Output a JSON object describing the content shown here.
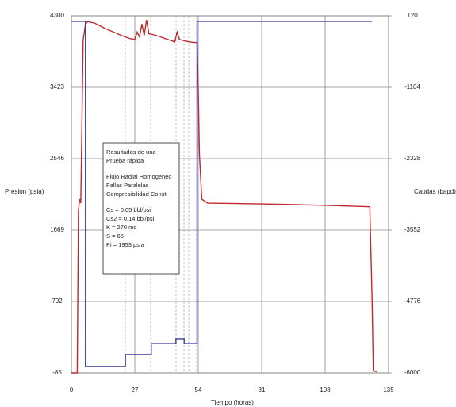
{
  "chart_data": {
    "type": "line",
    "xlabel": "Tiempo (horas)",
    "ylabel": "Presion (psia)",
    "y2label": "Caudas (bapd)",
    "xlim": [
      0,
      135
    ],
    "xticks": [
      0,
      27,
      54,
      81,
      108,
      135
    ],
    "ylim": [
      -85,
      4300
    ],
    "yticks": [
      -85,
      792,
      1669,
      2546,
      3423,
      4300
    ],
    "y2lim": [
      -6000,
      120
    ],
    "y2ticks": [
      -6000,
      -4776,
      -3552,
      -2328,
      -1104,
      120
    ],
    "grid": true,
    "annotation": [
      "Resultados de una",
      "Prueba rápida",
      "Flujo Radial Homogeneo",
      "Fallas Paralelas",
      "Compresibilidad Const.",
      "Cs  = 0.05 bbl/psi",
      "Cs2 = 0.14 bbl/psi",
      "K   = 270  md",
      "S   = 65",
      "Pi  = 1953 psia"
    ],
    "series": [
      {
        "name": "Presion",
        "color": "#c0282d",
        "x": [
          0,
          1.5,
          2.5,
          3,
          3.5,
          4,
          5,
          6,
          7,
          10,
          14,
          18,
          22,
          25,
          27,
          28,
          29,
          30,
          31,
          32,
          33,
          36,
          40,
          44,
          45,
          46,
          50,
          53.5,
          54,
          54.5,
          55.5,
          58,
          70,
          90,
          110,
          127,
          128,
          128.5,
          130
        ],
        "values": [
          -85,
          -85,
          -85,
          1900,
          2050,
          2000,
          4000,
          4200,
          4230,
          4210,
          4150,
          4100,
          4050,
          4020,
          4010,
          4100,
          4040,
          4200,
          4060,
          4250,
          4080,
          4060,
          4020,
          3980,
          4100,
          4010,
          3980,
          3970,
          3400,
          2600,
          2050,
          2000,
          1995,
          1985,
          1970,
          1955,
          800,
          -60,
          -70
        ]
      },
      {
        "name": "Caudas",
        "color": "#3a3a9a",
        "axis": "y2",
        "x": [
          0,
          6,
          6,
          23,
          23,
          34,
          34,
          44.5,
          44.5,
          48,
          48,
          53.5,
          53.5,
          128
        ],
        "values": [
          25,
          25,
          -5891,
          -5891,
          -5687,
          -5687,
          -5497,
          -5497,
          -5415,
          -5415,
          -5497,
          -5497,
          25,
          25
        ]
      }
    ]
  }
}
